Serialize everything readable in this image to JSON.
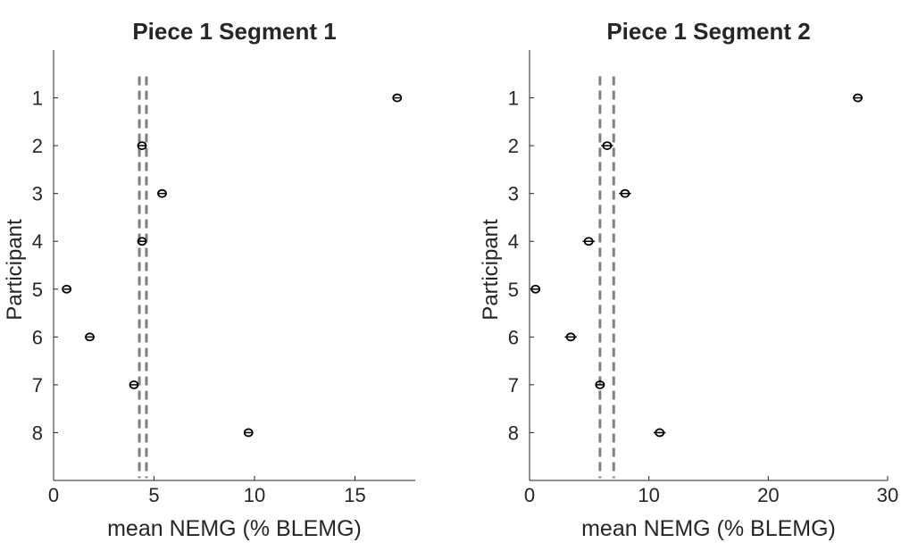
{
  "chart_data": [
    {
      "type": "scatter",
      "title": "Piece 1 Segment 1",
      "xlabel": "mean NEMG (% BLEMG)",
      "ylabel": "Participant",
      "xlim": [
        0,
        18
      ],
      "ylim": [
        0,
        9
      ],
      "y_reversed": true,
      "xticks": [
        0,
        5,
        10,
        15
      ],
      "yticks": [
        1,
        2,
        3,
        4,
        5,
        6,
        7,
        8
      ],
      "points": [
        {
          "participant": 1,
          "x": 17.1,
          "err": 0.15
        },
        {
          "participant": 2,
          "x": 4.4,
          "err": 0.2
        },
        {
          "participant": 3,
          "x": 5.4,
          "err": 0.2
        },
        {
          "participant": 4,
          "x": 4.4,
          "err": 0.2
        },
        {
          "participant": 5,
          "x": 0.65,
          "err": 0.15
        },
        {
          "participant": 6,
          "x": 1.8,
          "err": 0.15
        },
        {
          "participant": 7,
          "x": 4.0,
          "err": 0.2
        },
        {
          "participant": 8,
          "x": 9.7,
          "err": 0.2
        }
      ],
      "reference_lines": [
        4.27,
        4.62
      ]
    },
    {
      "type": "scatter",
      "title": "Piece 1 Segment 2",
      "xlabel": "mean NEMG (% BLEMG)",
      "ylabel": "Participant",
      "xlim": [
        0,
        30
      ],
      "ylim": [
        0,
        9
      ],
      "y_reversed": true,
      "xticks": [
        0,
        10,
        20,
        30
      ],
      "yticks": [
        1,
        2,
        3,
        4,
        5,
        6,
        7,
        8
      ],
      "points": [
        {
          "participant": 1,
          "x": 27.5,
          "err": 0.4
        },
        {
          "participant": 2,
          "x": 6.5,
          "err": 0.5
        },
        {
          "participant": 3,
          "x": 8.0,
          "err": 0.5
        },
        {
          "participant": 4,
          "x": 4.95,
          "err": 0.5
        },
        {
          "participant": 5,
          "x": 0.5,
          "err": 0.4
        },
        {
          "participant": 6,
          "x": 3.45,
          "err": 0.5
        },
        {
          "participant": 7,
          "x": 5.9,
          "err": 0.4
        },
        {
          "participant": 8,
          "x": 10.9,
          "err": 0.5
        }
      ],
      "reference_lines": [
        5.9,
        7.05
      ]
    }
  ],
  "colors": {
    "points": "#000000",
    "reference": "#808080",
    "axis": "#262626"
  }
}
